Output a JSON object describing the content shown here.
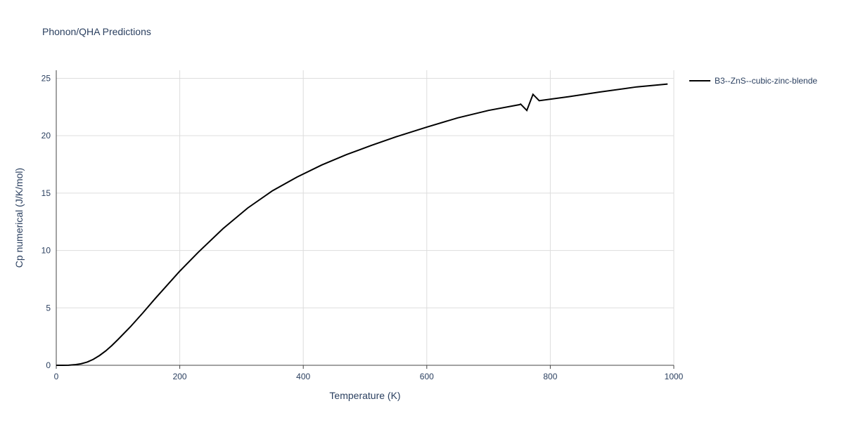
{
  "chart_data": {
    "type": "line",
    "title": "Phonon/QHA Predictions",
    "x_label": "Temperature (K)",
    "y_label": "Cp numerical (J/K/mol)",
    "x": [
      0,
      10,
      20,
      30,
      40,
      50,
      60,
      70,
      80,
      90,
      100,
      120,
      140,
      160,
      180,
      200,
      230,
      270,
      310,
      350,
      390,
      430,
      470,
      510,
      550,
      600,
      650,
      700,
      750,
      752,
      762,
      772,
      782,
      830,
      880,
      940,
      990
    ],
    "series": [
      {
        "name": "B3--ZnS--cubic-zinc-blende",
        "color": "#000000",
        "values": [
          0,
          0,
          0.01,
          0.05,
          0.13,
          0.28,
          0.52,
          0.85,
          1.25,
          1.72,
          2.25,
          3.35,
          4.55,
          5.8,
          7.0,
          8.2,
          9.85,
          11.9,
          13.7,
          15.2,
          16.4,
          17.45,
          18.35,
          19.15,
          19.9,
          20.75,
          21.55,
          22.2,
          22.7,
          22.75,
          22.2,
          23.6,
          23.05,
          23.4,
          23.8,
          24.25,
          24.5
        ]
      }
    ],
    "xlim": [
      0,
      1000
    ],
    "ylim": [
      0,
      25.7
    ],
    "xticks": [
      0,
      200,
      400,
      600,
      800,
      1000
    ],
    "yticks": [
      0,
      5,
      10,
      15,
      20,
      25
    ],
    "grid": true
  }
}
